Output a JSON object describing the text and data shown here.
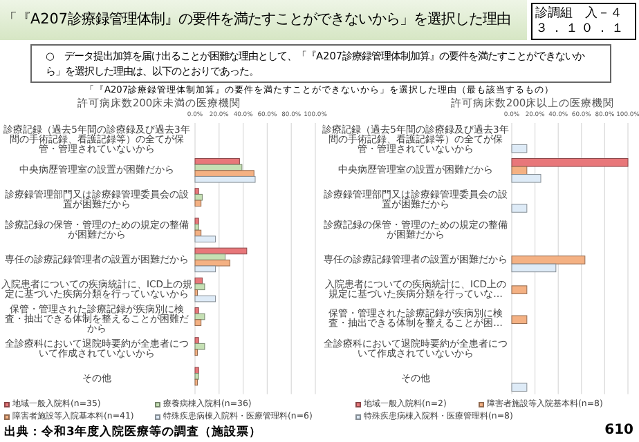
{
  "chart_data": [
    {
      "type": "bar",
      "orientation": "horizontal",
      "title": "許可病床数200床未満の医療機関",
      "annotations": [
        "「『A207診療録管理体制』の要件を満たすことができないから」を選択した理由",
        "診調組　入－４",
        "３．１０．１",
        "○　データ提出加算を届け出ることが困難な理由として、「『A207診療録管理体制加算』の要件を満たすことができないから」を選択した理由は、以下のとおりであった。",
        "「『A207診療録管理体制加算』の要件を満たすことができないから」を選択した理由（最も該当するもの）",
        "出典：令和3年度入院医療等の調査（施設票）",
        "610"
      ],
      "categories": [
        "診療記録（過去5年間の診療録及び過去3年間の手術記録、看護記録等）の全てが保管・管理されていないから",
        "中央病歴管理室の設置が困難だから",
        "診療録管理部門又は診療録管理委員会の設置が困難だから",
        "診療記録の保管・管理のための規定の整備が困難だから",
        "専任の診療記録管理者の設置が困難だから",
        "入院患者についての疾病統計に、ICD上の規定に基づいた疾病分類を行っていないから",
        "保管・管理された診療記録が疾病別に検査・抽出できる体制を整えることが困難だから",
        "全診療科において退院時要約が全患者について作成されていないから",
        "その他"
      ],
      "series": [
        {
          "name": "地域一般入院料(n=35)",
          "color": "#e8777a",
          "values": [
            0,
            37,
            3,
            3,
            43,
            6,
            3,
            3,
            3
          ]
        },
        {
          "name": "療養病棟入院料(n=36)",
          "color": "#c5e0b4",
          "values": [
            0,
            39,
            6,
            3,
            25,
            8,
            8,
            8,
            3
          ]
        },
        {
          "name": "障害者施設等入院基本料(n=41)",
          "color": "#f4b183",
          "values": [
            0,
            49,
            5,
            5,
            29,
            2,
            5,
            2,
            2
          ]
        },
        {
          "name": "特殊疾患病棟入院料・医療管理料(n=6)",
          "color": "#deebf7",
          "values": [
            0,
            50,
            0,
            17,
            17,
            17,
            0,
            0,
            0
          ]
        }
      ],
      "xlim": [
        0,
        100
      ],
      "xticks": [
        {
          "value": 0,
          "label": "0.0%"
        },
        {
          "value": 20,
          "label": "20.0%"
        },
        {
          "value": 40,
          "label": "40.0%"
        },
        {
          "value": 60,
          "label": "60.0%"
        },
        {
          "value": 80,
          "label": "80.0%"
        },
        {
          "value": 100,
          "label": "100.0%"
        }
      ],
      "grid": "x",
      "legend": "bottom"
    },
    {
      "type": "bar",
      "orientation": "horizontal",
      "title": "許可病床数200床以上の医療機関",
      "categories": [
        "診療記録（過去5年間の診療録及び過去3年間の手術記録、看護記録等）の全てが保管・管理されていないから",
        "中央病歴管理室の設置が困難だから",
        "診療録管理部門又は診療録管理委員会の設置が困難だから",
        "診療記録の保管・管理のための規定の整備が困難だから",
        "専任の診療記録管理者の設置が困難だから",
        "入院患者についての疾病統計に、ICD上の規定に基づいた疾病分類を行っていな…",
        "保管・管理された診療記録が疾病別に検査・抽出できる体制を整えることが困…",
        "全診療科において退院時要約が全患者について作成されていないから",
        "その他"
      ],
      "series": [
        {
          "name": "地域一般入院料(n=2)",
          "color": "#e8777a",
          "values": [
            0,
            100,
            0,
            0,
            0,
            0,
            0,
            0,
            0
          ]
        },
        {
          "name": "障害者施設等入院基本料(n=8)",
          "color": "#f4b183",
          "values": [
            0,
            13,
            0,
            0,
            63,
            13,
            13,
            0,
            0
          ]
        },
        {
          "name": "特殊疾患病棟入院料・医療管理料(n=8)",
          "color": "#deebf7",
          "values": [
            13,
            25,
            13,
            0,
            38,
            0,
            0,
            0,
            13
          ]
        }
      ],
      "xlim": [
        0,
        100
      ],
      "xticks": [
        {
          "value": 0,
          "label": "0.0%"
        },
        {
          "value": 20,
          "label": "20.0%"
        },
        {
          "value": 40,
          "label": "40.0%"
        },
        {
          "value": 60,
          "label": "60.0%"
        },
        {
          "value": 80,
          "label": "80.0%"
        },
        {
          "value": 100,
          "label": "100.0%"
        }
      ],
      "grid": "x",
      "legend": "bottom"
    }
  ]
}
